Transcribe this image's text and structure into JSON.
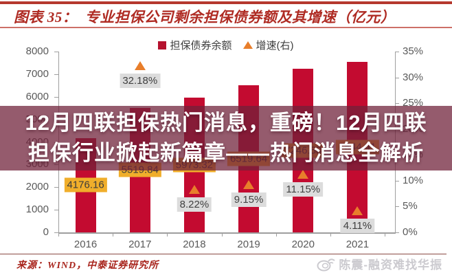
{
  "header": {
    "title": "图表 35：  专业担保公司剩余担保债券额及其增速（亿元）"
  },
  "legend": {
    "items": [
      {
        "label": "担保债券余额",
        "marker": "square",
        "color": "#B5122E"
      },
      {
        "label": "增速(右)",
        "marker": "triangle",
        "color": "#E87E2B"
      }
    ]
  },
  "overlay": {
    "line1": "12月四联担保热门消息，重磅！12月四联",
    "line2": "担保行业掀起新篇章——热门消息全解析"
  },
  "footer": {
    "source": "来源：WIND，中泰证券研究所",
    "watermark": "陈震-融资难找华振",
    "watermark_icon": "weibo-logo"
  },
  "colors": {
    "bar": "#C30B30",
    "growth_marker": "#E87E2B",
    "value_label_bg": "#F0AE2B",
    "pct_label_bg": "#DCDCDC",
    "overlay_bg": "rgba(112,34,58,0.74)",
    "accent_red": "#AF2B23"
  },
  "chart_data": {
    "type": "bar",
    "title": "专业担保公司剩余担保债券额及其增速（亿元）",
    "categories": [
      "2016",
      "2017",
      "2018",
      "2019",
      "2020",
      "2021"
    ],
    "series": [
      {
        "name": "担保债券余额",
        "type": "bar",
        "axis": "left",
        "color": "#C30B30",
        "values": [
          4176.16,
          5519.84,
          5973.32,
          6519.64,
          7246.58,
          7544.41
        ],
        "labels": [
          "4176.16",
          "5519.84",
          "5973.32",
          "6519.64",
          "7246.58",
          "7544.41"
        ]
      },
      {
        "name": "增速(右)",
        "type": "triangle-marker",
        "axis": "right",
        "color": "#E87E2B",
        "values": [
          null,
          32.18,
          8.22,
          9.15,
          11.15,
          4.11
        ],
        "labels": [
          "",
          "32.18%",
          "8.22%",
          "9.15%",
          "11.15%",
          "4.11%"
        ]
      }
    ],
    "left_axis": {
      "min": 0,
      "max": 8000,
      "step": 1000
    },
    "right_axis": {
      "min": 0,
      "max": 35,
      "step": 5,
      "suffix": "%"
    },
    "grid": false,
    "legend_position": "top"
  }
}
